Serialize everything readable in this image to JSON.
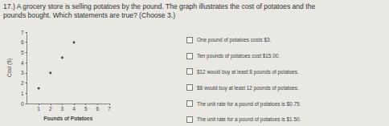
{
  "question_lines": [
    "17.) A grocery store is selling potatoes by the pound. The graph illustrates the cost of potatoes and the",
    "pounds bought. Which statements are true? (Choose 3.)"
  ],
  "chart_data": {
    "type": "scatter",
    "x_label": "Pounds of Potatoes",
    "y_label": "Cost ($)",
    "x": [
      1,
      2,
      3,
      4
    ],
    "values": [
      1.5,
      3,
      4.5,
      6
    ],
    "color": "#222222",
    "marker": "circle",
    "xlim": [
      0,
      7
    ],
    "xticks": [
      1,
      2,
      3,
      4,
      5,
      6,
      7
    ],
    "ylim": [
      0,
      7
    ],
    "yticks": [
      0,
      1,
      2,
      3,
      4,
      5,
      6,
      7
    ],
    "grid": false
  },
  "options": [
    "One pound of potatoes costs $3.",
    "Ten pounds of potatoes cost $15.00.",
    "$12 would buy at least 8 pounds of potatoes.",
    "$8 would buy at least 12 pounds of potatoes.",
    "The unit rate for a pound of potatoes is $0.75.",
    "The unit rate for a pound of potatoes is $1.50."
  ]
}
